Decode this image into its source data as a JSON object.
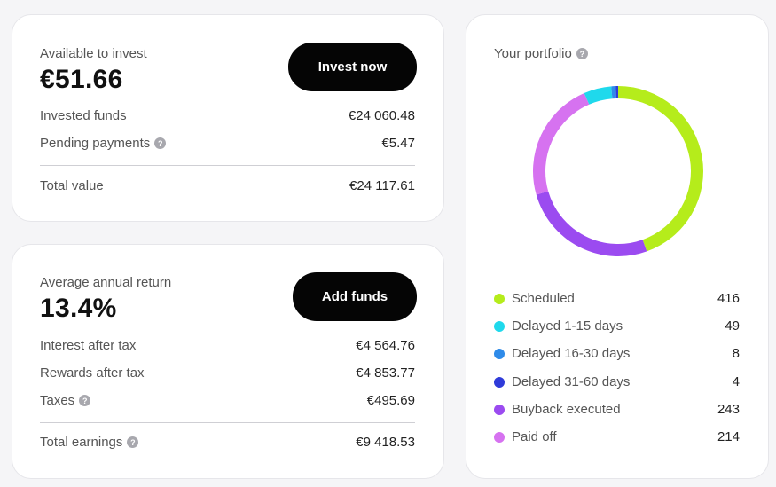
{
  "invest_card": {
    "available_label": "Available to invest",
    "available_value": "€51.66",
    "button_label": "Invest now",
    "rows": [
      {
        "label": "Invested funds",
        "value": "€24 060.48",
        "help": false
      },
      {
        "label": "Pending payments",
        "value": "€5.47",
        "help": true
      }
    ],
    "total_label": "Total value",
    "total_value": "€24 117.61"
  },
  "return_card": {
    "return_label": "Average annual return",
    "return_value": "13.4%",
    "button_label": "Add funds",
    "rows": [
      {
        "label": "Interest after tax",
        "value": "€4 564.76",
        "help": false
      },
      {
        "label": "Rewards after tax",
        "value": "€4 853.77",
        "help": false
      },
      {
        "label": "Taxes",
        "value": "€495.69",
        "help": true
      }
    ],
    "total_label": "Total earnings",
    "total_value": "€9 418.53"
  },
  "portfolio": {
    "title": "Your portfolio",
    "help_glyph": "?",
    "segments": [
      {
        "name": "Scheduled",
        "count": 416,
        "color": "#b5ec1b"
      },
      {
        "name": "Delayed 1-15 days",
        "count": 49,
        "color": "#1fd9ec"
      },
      {
        "name": "Delayed 16-30 days",
        "count": 8,
        "color": "#2e8be9"
      },
      {
        "name": "Delayed 31-60 days",
        "count": 4,
        "color": "#2f3bd9"
      },
      {
        "name": "Buyback executed",
        "count": 243,
        "color": "#9b4bf0"
      },
      {
        "name": "Paid off",
        "count": 214,
        "color": "#d672f0"
      }
    ]
  }
}
